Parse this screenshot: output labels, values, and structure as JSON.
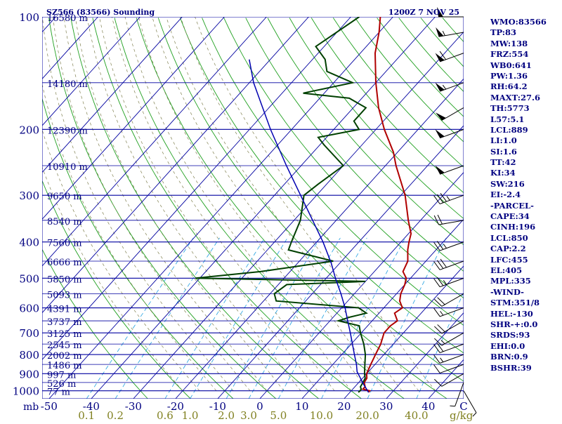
{
  "header": {
    "station": "SZ566 (83566) Sounding",
    "time": "1200Z  7 NOV 25"
  },
  "indices": [
    "WMO:83566",
    "TP:83",
    "MW:138",
    "FRZ:554",
    "WB0:641",
    "PW:1.36",
    "RH:64.2",
    "MAXT:27.6",
    "TH:5773",
    "L57:5.1",
    "LCL:889",
    "LI:1.0",
    "SI:1.6",
    "TT:42",
    "KI:34",
    "SW:216",
    "EI:-2.4",
    "-PARCEL-",
    "CAPE:34",
    "CINH:196",
    "LCL:850",
    "CAP:2.2",
    "LFC:455",
    "EL:405",
    "MPL:335",
    "-WIND-",
    "STM:351/8",
    "HEL:-130",
    "SHR-+:0.0",
    "SRDS:93",
    "EHI:0.0",
    "BRN:0.9",
    "BSHR:39"
  ],
  "colors": {
    "isobar": "#0000a0",
    "isotherm": "#0000a0",
    "dry_adiabat": "#20a020",
    "moist_adiabat": "#808050",
    "mixing_ratio": "#20a0e0",
    "temperature": "#b00000",
    "dewpoint": "#004000",
    "parcel": "#0000b0",
    "wind": "#000000",
    "label": "#000080",
    "mixing_label": "#808020"
  },
  "chart_data": {
    "type": "skew-t",
    "y_axis": {
      "unit_label": "mb",
      "scale": "log",
      "range": [
        1050,
        100
      ],
      "ticks": [
        100,
        200,
        300,
        400,
        500,
        600,
        700,
        800,
        900,
        1000
      ]
    },
    "x_axis": {
      "unit": "°C",
      "ticks": [
        -50,
        -40,
        -30,
        -20,
        -10,
        0,
        10,
        20,
        30,
        40
      ],
      "ticks_labels": [
        "-50",
        "-40",
        "-30",
        "-20",
        "-10",
        "0",
        "10",
        "20",
        "30",
        "40"
      ],
      "end_label": "C"
    },
    "mixing_ratio": {
      "unit": "g/kg",
      "values": [
        0.1,
        0.2,
        0.6,
        1.0,
        2.0,
        3.0,
        5.0,
        10.0,
        20.0,
        40.0
      ],
      "labels": [
        "0.1",
        "0.2",
        "0.6",
        "1.0",
        "2.0",
        "3.0",
        "5.0",
        "10.0",
        "20.0",
        "40.0"
      ]
    },
    "height_labels": [
      {
        "p": 100,
        "label": "16580 m"
      },
      {
        "p": 150,
        "label": "14180 m"
      },
      {
        "p": 200,
        "label": "12390 m"
      },
      {
        "p": 250,
        "label": "10910 m"
      },
      {
        "p": 300,
        "label": "9650 m"
      },
      {
        "p": 350,
        "label": "8540 m"
      },
      {
        "p": 400,
        "label": "7560 m"
      },
      {
        "p": 450,
        "label": "6666 m"
      },
      {
        "p": 500,
        "label": "5850 m"
      },
      {
        "p": 550,
        "label": "5093 m"
      },
      {
        "p": 600,
        "label": "4391 m"
      },
      {
        "p": 650,
        "label": "3737 m"
      },
      {
        "p": 700,
        "label": "3125 m"
      },
      {
        "p": 750,
        "label": "2545 m"
      },
      {
        "p": 800,
        "label": "2002 m"
      },
      {
        "p": 850,
        "label": "1486 m"
      },
      {
        "p": 900,
        "label": "997 m"
      },
      {
        "p": 950,
        "label": "526 m"
      },
      {
        "p": 1000,
        "label": "77 m"
      }
    ],
    "series": [
      {
        "values": [
          [
            1009,
            24.4
          ],
          [
            1000,
            24.4
          ],
          [
            990,
            22.4
          ],
          [
            975,
            22.4
          ],
          [
            950,
            21.3
          ],
          [
            925,
            21.0
          ],
          [
            900,
            20.0
          ],
          [
            850,
            19.0
          ],
          [
            800,
            18.0
          ],
          [
            750,
            17.0
          ],
          [
            700,
            15.4
          ],
          [
            670,
            15.4
          ],
          [
            650,
            16.0
          ],
          [
            620,
            13.7
          ],
          [
            600,
            14.4
          ],
          [
            575,
            12.3
          ],
          [
            550,
            11.0
          ],
          [
            520,
            10.0
          ],
          [
            500,
            9.0
          ],
          [
            480,
            6.8
          ],
          [
            450,
            5.7
          ],
          [
            420,
            3.3
          ],
          [
            400,
            1.9
          ],
          [
            380,
            0.6
          ],
          [
            350,
            -2.9
          ],
          [
            300,
            -9.0
          ],
          [
            250,
            -17.5
          ],
          [
            230,
            -21.0
          ],
          [
            200,
            -28.0
          ],
          [
            175,
            -34.0
          ],
          [
            150,
            -40.0
          ],
          [
            125,
            -46.5
          ],
          [
            110,
            -50.0
          ],
          [
            100,
            -53.0
          ]
        ]
      },
      {
        "values": [
          [
            1009,
            22.0
          ],
          [
            1000,
            22.1
          ],
          [
            990,
            22.0
          ],
          [
            975,
            21.3
          ],
          [
            950,
            21.0
          ],
          [
            925,
            20.6
          ],
          [
            900,
            19.5
          ],
          [
            850,
            17.6
          ],
          [
            800,
            15.6
          ],
          [
            750,
            13.0
          ],
          [
            700,
            9.8
          ],
          [
            670,
            8.0
          ],
          [
            650,
            2.0
          ],
          [
            635,
            4.0
          ],
          [
            620,
            7.0
          ],
          [
            600,
            4.0
          ],
          [
            575,
            -17.0
          ],
          [
            550,
            -19.0
          ],
          [
            520,
            -18.0
          ],
          [
            510,
            0.0
          ],
          [
            500,
            -41.0
          ],
          [
            480,
            -27.0
          ],
          [
            450,
            -12.0
          ],
          [
            420,
            -25.0
          ],
          [
            400,
            -26.0
          ],
          [
            350,
            -28.5
          ],
          [
            300,
            -33.0
          ],
          [
            280,
            -32.0
          ],
          [
            250,
            -30.0
          ],
          [
            220,
            -39.0
          ],
          [
            210,
            -42.0
          ],
          [
            200,
            -34.0
          ],
          [
            190,
            -37.0
          ],
          [
            175,
            -37.0
          ],
          [
            165,
            -43.0
          ],
          [
            160,
            -55.0
          ],
          [
            150,
            -45.5
          ],
          [
            140,
            -54.0
          ],
          [
            130,
            -57.0
          ],
          [
            120,
            -62.0
          ],
          [
            100,
            -58.0
          ]
        ]
      },
      {
        "values": [
          [
            1009,
            24.4
          ],
          [
            960,
            21.5
          ],
          [
            889,
            17.3
          ],
          [
            850,
            15.6
          ],
          [
            800,
            13.0
          ],
          [
            750,
            10.3
          ],
          [
            700,
            7.4
          ],
          [
            650,
            4.2
          ],
          [
            600,
            0.8
          ],
          [
            550,
            -3.2
          ],
          [
            500,
            -7.8
          ],
          [
            455,
            -12.1
          ],
          [
            400,
            -18.5
          ],
          [
            350,
            -25.6
          ],
          [
            300,
            -33.8
          ],
          [
            250,
            -43.5
          ],
          [
            200,
            -55.0
          ],
          [
            150,
            -69.0
          ],
          [
            130,
            -75.0
          ]
        ]
      }
    ],
    "wind_barbs": [
      {
        "p": 1000,
        "dir": 150,
        "spd": 5
      },
      {
        "p": 950,
        "dir": 200,
        "spd": 5
      },
      {
        "p": 900,
        "dir": 240,
        "spd": 10
      },
      {
        "p": 850,
        "dir": 250,
        "spd": 10
      },
      {
        "p": 800,
        "dir": 250,
        "spd": 15
      },
      {
        "p": 750,
        "dir": 250,
        "spd": 20
      },
      {
        "p": 700,
        "dir": 240,
        "spd": 15
      },
      {
        "p": 650,
        "dir": 240,
        "spd": 20
      },
      {
        "p": 600,
        "dir": 250,
        "spd": 15
      },
      {
        "p": 550,
        "dir": 240,
        "spd": 20
      },
      {
        "p": 500,
        "dir": 250,
        "spd": 25
      },
      {
        "p": 450,
        "dir": 250,
        "spd": 30
      },
      {
        "p": 400,
        "dir": 250,
        "spd": 25
      },
      {
        "p": 350,
        "dir": 260,
        "spd": 20
      },
      {
        "p": 300,
        "dir": 250,
        "spd": 35
      },
      {
        "p": 250,
        "dir": 250,
        "spd": 50
      },
      {
        "p": 200,
        "dir": 250,
        "spd": 50
      },
      {
        "p": 175,
        "dir": 240,
        "spd": 50
      },
      {
        "p": 150,
        "dir": 250,
        "spd": 55
      },
      {
        "p": 125,
        "dir": 250,
        "spd": 60
      },
      {
        "p": 110,
        "dir": 260,
        "spd": 55
      },
      {
        "p": 100,
        "dir": 270,
        "spd": 50
      }
    ]
  }
}
